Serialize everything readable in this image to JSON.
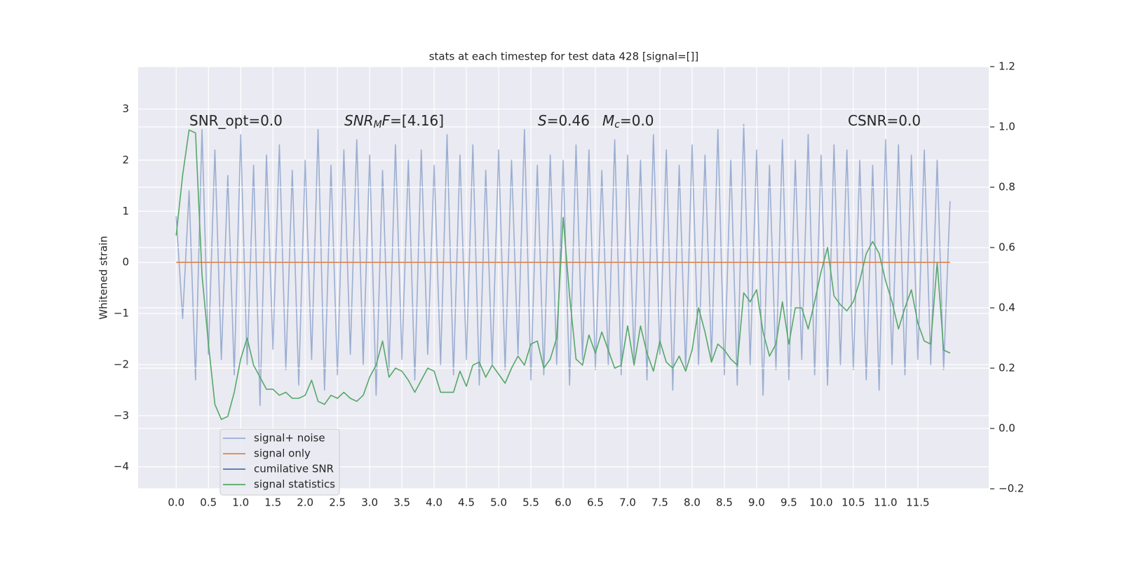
{
  "chart_data": {
    "type": "line",
    "title": "stats at each timestep for test data 428 [signal=[]]",
    "y_label": "Whitened strain",
    "xlim": [
      -0.59,
      12.6
    ],
    "ylim": [
      -4.43,
      3.83
    ],
    "y2lim": [
      -0.2,
      1.2
    ],
    "grid": true,
    "legend": "lower left",
    "xticks": [
      {
        "value": 0,
        "label": "0.0"
      },
      0.5,
      {
        "value": 1,
        "label": "1.0"
      },
      1.5,
      {
        "value": 2,
        "label": "2.0"
      },
      2.5,
      {
        "value": 3,
        "label": "3.0"
      },
      3.5,
      {
        "value": 4,
        "label": "4.0"
      },
      4.5,
      {
        "value": 5,
        "label": "5.0"
      },
      5.5,
      {
        "value": 6,
        "label": "6.0"
      },
      6.5,
      {
        "value": 7,
        "label": "7.0"
      },
      7.5,
      {
        "value": 8,
        "label": "8.0"
      },
      8.5,
      {
        "value": 9,
        "label": "9.0"
      },
      9.5,
      {
        "value": 10,
        "label": "10.0"
      },
      10.5,
      {
        "value": 11,
        "label": "11.0"
      },
      11.5
    ],
    "yticks": [
      {
        "value": -4,
        "label": "−4"
      },
      {
        "value": -3,
        "label": "−3"
      },
      {
        "value": -2,
        "label": "−2"
      },
      {
        "value": -1,
        "label": "−1"
      },
      0,
      1,
      2,
      3
    ],
    "y2ticks": [
      {
        "value": -0.2,
        "label": "−0.2"
      },
      {
        "value": 0,
        "label": "0.0"
      },
      0.2,
      0.4,
      0.6,
      0.8,
      {
        "value": 1,
        "label": "1.0"
      },
      1.2
    ],
    "annotations": [
      [
        {
          "text": "SNR_opt=0.0"
        }
      ],
      [
        {
          "text": "SNR",
          "italic": true
        },
        {
          "text": "M",
          "italic": true,
          "sub": true
        },
        {
          "text": "F",
          "italic": true
        },
        {
          "text": "=[4.16]"
        }
      ],
      [
        {
          "text": "S",
          "italic": true
        },
        {
          "text": "=0.46"
        }
      ],
      [
        {
          "text": "M",
          "italic": true
        },
        {
          "text": "c",
          "italic": true,
          "sub": true
        },
        {
          "text": "=0.0"
        }
      ],
      [
        {
          "text": "CSNR=0.0"
        }
      ]
    ],
    "x": [
      0,
      0.1,
      0.2,
      0.3,
      0.4,
      0.5,
      0.6,
      0.7,
      0.8,
      0.9,
      1,
      1.1,
      1.2,
      1.3,
      1.4,
      1.5,
      1.6,
      1.7,
      1.8,
      1.9,
      2,
      2.1,
      2.2,
      2.3,
      2.4,
      2.5,
      2.6,
      2.7,
      2.8,
      2.9,
      3,
      3.1,
      3.2,
      3.3,
      3.4,
      3.5,
      3.6,
      3.7,
      3.8,
      3.9,
      4,
      4.1,
      4.2,
      4.3,
      4.4,
      4.5,
      4.6,
      4.7,
      4.8,
      4.9,
      5,
      5.1,
      5.2,
      5.3,
      5.4,
      5.5,
      5.6,
      5.7,
      5.8,
      5.9,
      6,
      6.1,
      6.2,
      6.3,
      6.4,
      6.5,
      6.6,
      6.7,
      6.8,
      6.9,
      7,
      7.1,
      7.2,
      7.3,
      7.4,
      7.5,
      7.6,
      7.7,
      7.8,
      7.9,
      8,
      8.1,
      8.2,
      8.3,
      8.4,
      8.5,
      8.6,
      8.7,
      8.8,
      8.9,
      9,
      9.1,
      9.2,
      9.3,
      9.4,
      9.5,
      9.6,
      9.7,
      9.8,
      9.9,
      10,
      10.1,
      10.2,
      10.3,
      10.4,
      10.5,
      10.6,
      10.7,
      10.8,
      10.9,
      11,
      11.1,
      11.2,
      11.3,
      11.4,
      11.5,
      11.6,
      11.7,
      11.8,
      11.9,
      12
    ],
    "series": [
      {
        "name": "signal+ noise",
        "color": "#4c72b0",
        "opacity": 0.5,
        "values": [
          0.9,
          -1.1,
          1.4,
          -2.3,
          2.6,
          -1.8,
          2.2,
          -1.9,
          1.7,
          -2.2,
          2.5,
          -2.0,
          1.9,
          -2.8,
          2.1,
          -1.7,
          2.3,
          -2.1,
          1.8,
          -2.4,
          2.0,
          -1.9,
          2.6,
          -2.5,
          1.9,
          -2.2,
          2.2,
          -1.8,
          2.4,
          -2.0,
          2.1,
          -2.6,
          1.8,
          -2.1,
          2.3,
          -1.9,
          2.0,
          -2.3,
          2.2,
          -1.8,
          1.9,
          -2.0,
          2.5,
          -2.2,
          2.1,
          -1.9,
          2.3,
          -2.4,
          1.8,
          -2.0,
          2.2,
          -2.1,
          2.0,
          -1.8,
          2.6,
          -2.3,
          1.9,
          -2.2,
          2.1,
          -2.0,
          2.0,
          -2.4,
          2.3,
          -1.9,
          2.2,
          -2.1,
          1.8,
          -2.0,
          2.4,
          -2.2,
          2.1,
          -1.9,
          2.0,
          -2.3,
          2.5,
          -1.8,
          2.2,
          -2.5,
          1.9,
          -2.1,
          2.3,
          -2.0,
          2.1,
          -1.9,
          2.6,
          -2.2,
          2.0,
          -2.4,
          2.7,
          -2.0,
          2.2,
          -2.6,
          1.9,
          -2.1,
          2.4,
          -2.3,
          2.0,
          -1.9,
          2.5,
          -2.2,
          2.1,
          -2.4,
          2.3,
          -2.0,
          2.2,
          -2.1,
          2.0,
          -2.3,
          1.9,
          -2.5,
          2.4,
          -2.0,
          2.3,
          -2.2,
          2.1,
          -1.9,
          2.2,
          -2.0,
          2.0,
          -2.1,
          1.2
        ]
      },
      {
        "name": "signal only",
        "color": "#dd8452",
        "opacity": 1,
        "x": [
          0,
          12
        ],
        "values": [
          0,
          0
        ]
      },
      {
        "name": "cumilative SNR",
        "color": "#4c72b0",
        "opacity": 1,
        "x": [],
        "values": []
      },
      {
        "name": "signal statistics",
        "color": "#55a868",
        "opacity": 1,
        "axis": "y2",
        "values": [
          0.64,
          0.84,
          0.99,
          0.98,
          0.51,
          0.28,
          0.08,
          0.03,
          0.04,
          0.12,
          0.23,
          0.3,
          0.21,
          0.17,
          0.13,
          0.13,
          0.11,
          0.12,
          0.1,
          0.1,
          0.11,
          0.16,
          0.09,
          0.08,
          0.11,
          0.1,
          0.12,
          0.1,
          0.09,
          0.11,
          0.17,
          0.21,
          0.29,
          0.17,
          0.2,
          0.19,
          0.16,
          0.12,
          0.16,
          0.2,
          0.19,
          0.12,
          0.12,
          0.12,
          0.19,
          0.14,
          0.21,
          0.22,
          0.17,
          0.21,
          0.18,
          0.15,
          0.2,
          0.24,
          0.21,
          0.28,
          0.29,
          0.2,
          0.23,
          0.3,
          0.7,
          0.44,
          0.23,
          0.21,
          0.31,
          0.25,
          0.32,
          0.26,
          0.2,
          0.21,
          0.34,
          0.21,
          0.34,
          0.25,
          0.19,
          0.29,
          0.22,
          0.2,
          0.24,
          0.19,
          0.26,
          0.4,
          0.32,
          0.22,
          0.28,
          0.26,
          0.23,
          0.21,
          0.45,
          0.42,
          0.46,
          0.32,
          0.24,
          0.28,
          0.42,
          0.28,
          0.4,
          0.4,
          0.33,
          0.42,
          0.52,
          0.6,
          0.44,
          0.41,
          0.39,
          0.42,
          0.49,
          0.58,
          0.62,
          0.58,
          0.49,
          0.42,
          0.33,
          0.4,
          0.46,
          0.35,
          0.29,
          0.28,
          0.55,
          0.26,
          0.25
        ]
      }
    ]
  }
}
